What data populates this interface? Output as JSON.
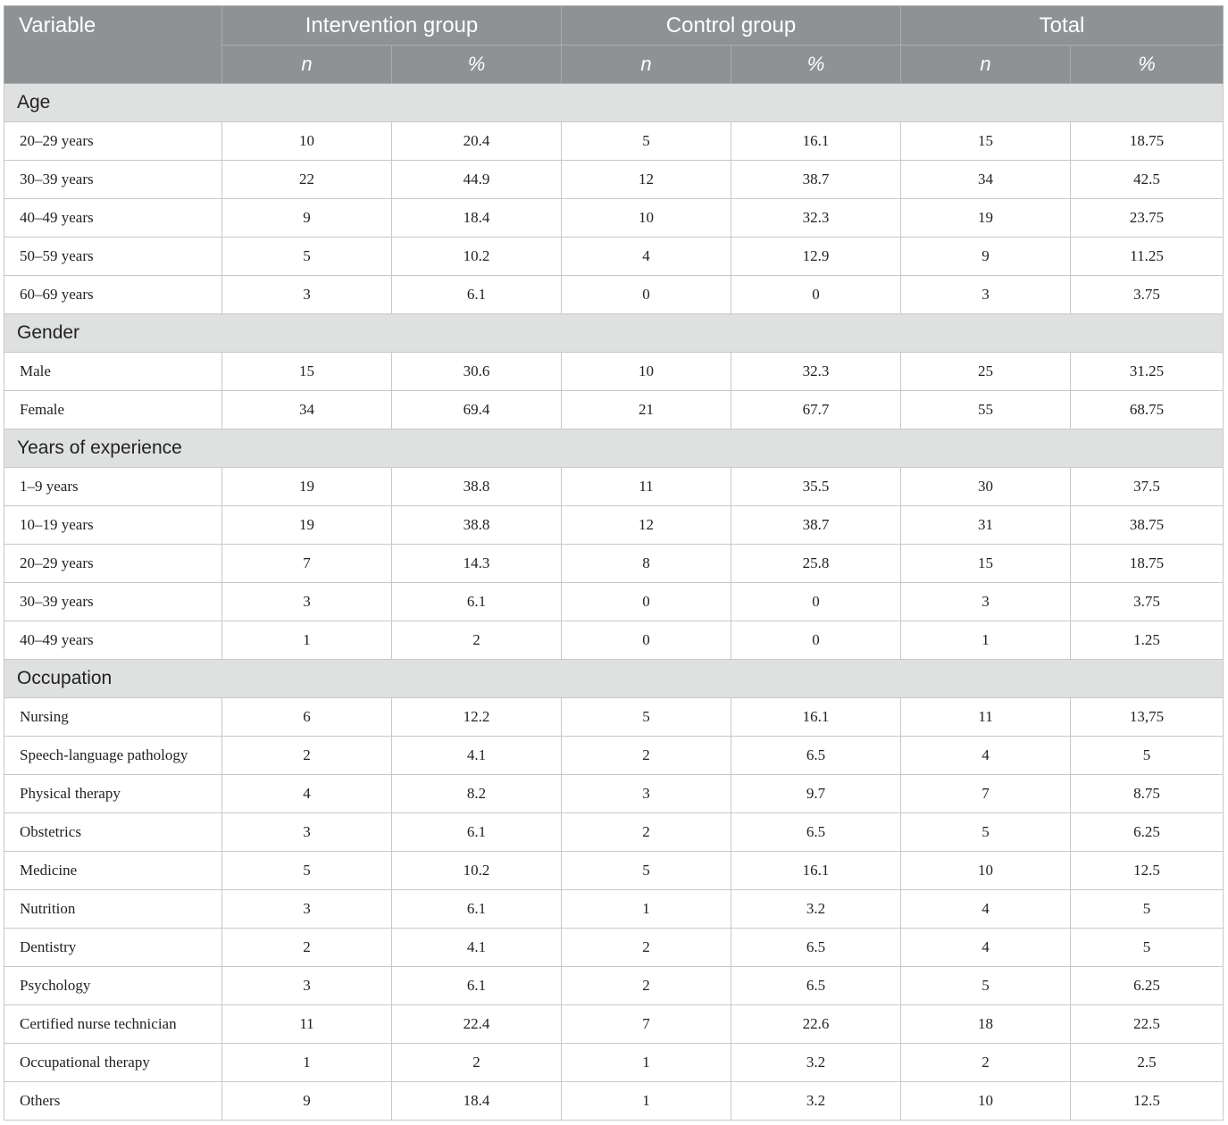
{
  "header": {
    "variable": "Variable",
    "groups": [
      "Intervention group",
      "Control group",
      "Total"
    ],
    "n": "n",
    "pct": "%"
  },
  "sections": [
    {
      "title": "Age",
      "rows": [
        {
          "label": "20–29 years",
          "vals": [
            "10",
            "20.4",
            "5",
            "16.1",
            "15",
            "18.75"
          ]
        },
        {
          "label": "30–39 years",
          "vals": [
            "22",
            "44.9",
            "12",
            "38.7",
            "34",
            "42.5"
          ]
        },
        {
          "label": "40–49 years",
          "vals": [
            "9",
            "18.4",
            "10",
            "32.3",
            "19",
            "23.75"
          ]
        },
        {
          "label": "50–59 years",
          "vals": [
            "5",
            "10.2",
            "4",
            "12.9",
            "9",
            "11.25"
          ]
        },
        {
          "label": "60–69 years",
          "vals": [
            "3",
            "6.1",
            "0",
            "0",
            "3",
            "3.75"
          ]
        }
      ]
    },
    {
      "title": "Gender",
      "rows": [
        {
          "label": "Male",
          "vals": [
            "15",
            "30.6",
            "10",
            "32.3",
            "25",
            "31.25"
          ]
        },
        {
          "label": "Female",
          "vals": [
            "34",
            "69.4",
            "21",
            "67.7",
            "55",
            "68.75"
          ]
        }
      ]
    },
    {
      "title": "Years of experience",
      "rows": [
        {
          "label": "1–9 years",
          "vals": [
            "19",
            "38.8",
            "11",
            "35.5",
            "30",
            "37.5"
          ]
        },
        {
          "label": "10–19 years",
          "vals": [
            "19",
            "38.8",
            "12",
            "38.7",
            "31",
            "38.75"
          ]
        },
        {
          "label": "20–29 years",
          "vals": [
            "7",
            "14.3",
            "8",
            "25.8",
            "15",
            "18.75"
          ]
        },
        {
          "label": "30–39 years",
          "vals": [
            "3",
            "6.1",
            "0",
            "0",
            "3",
            "3.75"
          ]
        },
        {
          "label": "40–49 years",
          "vals": [
            "1",
            "2",
            "0",
            "0",
            "1",
            "1.25"
          ]
        }
      ]
    },
    {
      "title": "Occupation",
      "rows": [
        {
          "label": "Nursing",
          "vals": [
            "6",
            "12.2",
            "5",
            "16.1",
            "11",
            "13,75"
          ]
        },
        {
          "label": "Speech-language pathology",
          "vals": [
            "2",
            "4.1",
            "2",
            "6.5",
            "4",
            "5"
          ]
        },
        {
          "label": "Physical therapy",
          "vals": [
            "4",
            "8.2",
            "3",
            "9.7",
            "7",
            "8.75"
          ]
        },
        {
          "label": "Obstetrics",
          "vals": [
            "3",
            "6.1",
            "2",
            "6.5",
            "5",
            "6.25"
          ]
        },
        {
          "label": "Medicine",
          "vals": [
            "5",
            "10.2",
            "5",
            "16.1",
            "10",
            "12.5"
          ]
        },
        {
          "label": "Nutrition",
          "vals": [
            "3",
            "6.1",
            "1",
            "3.2",
            "4",
            "5"
          ]
        },
        {
          "label": "Dentistry",
          "vals": [
            "2",
            "4.1",
            "2",
            "6.5",
            "4",
            "5"
          ]
        },
        {
          "label": "Psychology",
          "vals": [
            "3",
            "6.1",
            "2",
            "6.5",
            "5",
            "6.25"
          ]
        },
        {
          "label": "Certified nurse technician",
          "vals": [
            "11",
            "22.4",
            "7",
            "22.6",
            "18",
            "22.5"
          ]
        },
        {
          "label": "Occupational therapy",
          "vals": [
            "1",
            "2",
            "1",
            "3.2",
            "2",
            "2.5"
          ]
        },
        {
          "label": "Others",
          "vals": [
            "9",
            "18.4",
            "1",
            "3.2",
            "10",
            "12.5"
          ]
        }
      ]
    }
  ]
}
